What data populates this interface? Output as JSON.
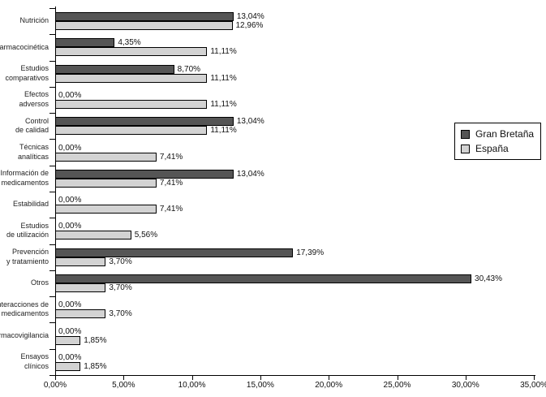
{
  "chart_data": {
    "type": "bar",
    "orientation": "horizontal",
    "title": "",
    "xlabel": "",
    "ylabel": "",
    "xlim": [
      0,
      35
    ],
    "grid": false,
    "legend_position": "right",
    "categories": [
      "Nutrición",
      "Farmacocinética",
      "Estudios comparativos",
      "Efectos adversos",
      "Control de calidad",
      "Técnicas analíticas",
      "Información de medicamentos",
      "Estabilidad",
      "Estudios de utilización",
      "Prevención y tratamiento",
      "Otros",
      "Interacciones de medicamentos",
      "Farmacovigilancia",
      "Ensayos clínicos"
    ],
    "category_display_lines": [
      [
        "Nutrición"
      ],
      [
        "Farmacocinética"
      ],
      [
        "Estudios",
        "comparativos"
      ],
      [
        "Efectos",
        "adversos"
      ],
      [
        "Control",
        "de calidad"
      ],
      [
        "Técnicas",
        "analíticas"
      ],
      [
        "Información de",
        "medicamentos"
      ],
      [
        "Estabilidad"
      ],
      [
        "Estudios",
        "de utilización"
      ],
      [
        "Prevención",
        "y tratamiento"
      ],
      [
        "Otros"
      ],
      [
        "Interacciones de",
        "medicamentos"
      ],
      [
        "Farmacovigilancia"
      ],
      [
        "Ensayos",
        "clínicos"
      ]
    ],
    "series": [
      {
        "name": "Gran Bretaña",
        "color": "#555555",
        "values": [
          13.04,
          4.35,
          8.7,
          0.0,
          13.04,
          0.0,
          13.04,
          0.0,
          0.0,
          17.39,
          30.43,
          0.0,
          0.0,
          0.0
        ],
        "labels": [
          "13,04%",
          "4,35%",
          "8,70%",
          "0,00%",
          "13,04%",
          "0,00%",
          "13,04%",
          "0,00%",
          "0,00%",
          "17,39%",
          "30,43%",
          "0,00%",
          "0,00%",
          "0,00%"
        ]
      },
      {
        "name": "España",
        "color": "#d3d3d3",
        "values": [
          12.96,
          11.11,
          11.11,
          11.11,
          11.11,
          7.41,
          7.41,
          7.41,
          5.56,
          3.7,
          3.7,
          3.7,
          1.85,
          1.85
        ],
        "labels": [
          "12,96%",
          "11,11%",
          "11,11%",
          "11,11%",
          "11,11%",
          "7,41%",
          "7,41%",
          "7,41%",
          "5,56%",
          "3,70%",
          "3,70%",
          "3,70%",
          "1,85%",
          "1,85%"
        ]
      }
    ],
    "x_tick_labels": [
      "0,00%",
      "5,00%",
      "10,00%",
      "15,00%",
      "20,00%",
      "25,00%",
      "30,00%",
      "35,00%"
    ]
  },
  "colors": {
    "axis": "#000000",
    "background": "#ffffff",
    "bar_border": "#000000"
  }
}
